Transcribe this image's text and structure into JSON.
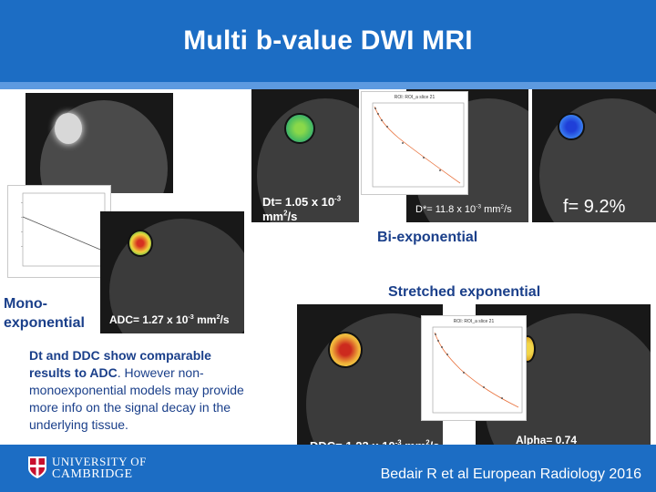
{
  "slide": {
    "title": "Multi b-value DWI MRI",
    "mono_label_line1": "Mono-",
    "mono_label_line2": "exponential",
    "adc_label_prefix": "ADC= 1.27 x 10",
    "adc_label_exp": "-3",
    "adc_label_unit": " mm",
    "adc_label_unit_exp": "2",
    "adc_label_tail": "/s",
    "dt_label_prefix": "Dt= 1.05 x 10",
    "dt_label_exp": "-3",
    "dt_label_unit": "mm",
    "dt_label_unit_exp": "2",
    "dt_label_tail": "/s",
    "dstar_label_prefix": "D*= 11.8 x 10",
    "dstar_label_exp": "-3",
    "dstar_label_unit": " mm",
    "dstar_label_unit_exp": "2",
    "dstar_label_tail": "/s",
    "f_label": "f= 9.2%",
    "bi_label": "Bi-exponential",
    "stretched_label": "Stretched exponential",
    "ddc_label_prefix": "DDC= 1.23 x 10",
    "ddc_label_exp": "-3",
    "ddc_label_unit": " mm",
    "ddc_label_unit_exp": "2",
    "ddc_label_tail": "/s",
    "alpha_label": "Alpha= 0.74",
    "summary_bold": "Dt and DDC show comparable results to ADC",
    "summary_rest": ". However non-monoexponential models may provide more info on the signal decay in the underlying tissue.",
    "citation": "Bedair R et al European Radiology 2016",
    "university_line1": "UNIVERSITY OF",
    "university_line2": "CAMBRIDGE",
    "plot_title_bi": "ROI: ROI_a slice 21",
    "plot_title_stretched": "ROI: ROI_a slice 21"
  },
  "colors": {
    "header_blue": "#1c6dc4",
    "text_blue": "#1a3f8a",
    "fit_line": "#e8703a"
  }
}
